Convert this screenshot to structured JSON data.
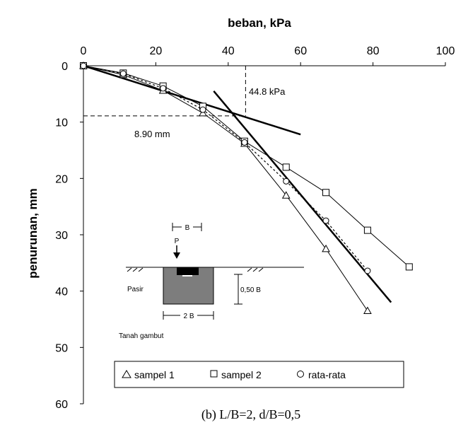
{
  "chart_data": {
    "type": "line",
    "xlabel": "beban, kPa",
    "ylabel": "penurunan, mm",
    "xlim": [
      0,
      100
    ],
    "ylim": [
      60,
      0
    ],
    "x_axis_position": "top",
    "y_inverted": true,
    "x_ticks": [
      "0",
      "20",
      "40",
      "60",
      "80",
      "100"
    ],
    "y_ticks": [
      "0",
      "10",
      "20",
      "30",
      "40",
      "50",
      "60"
    ],
    "grid": false,
    "legend_position": "bottom",
    "series": [
      {
        "name": "sampel 1",
        "marker": "triangle",
        "points": [
          [
            0,
            0
          ],
          [
            11,
            1.6
          ],
          [
            22,
            4.4
          ],
          [
            33,
            8.4
          ],
          [
            44.5,
            13.8
          ],
          [
            56,
            23
          ],
          [
            67,
            32.5
          ],
          [
            78.5,
            43.5
          ]
        ]
      },
      {
        "name": "sampel 2",
        "marker": "square",
        "points": [
          [
            0,
            0
          ],
          [
            11,
            1.3
          ],
          [
            22,
            3.6
          ],
          [
            33,
            7.2
          ],
          [
            44.5,
            13.4
          ],
          [
            56,
            18
          ],
          [
            67,
            22.5
          ],
          [
            78.5,
            29.2
          ],
          [
            90,
            35.7
          ]
        ]
      },
      {
        "name": "rata-rata",
        "marker": "circle",
        "points": [
          [
            0,
            0
          ],
          [
            11,
            1.4
          ],
          [
            22,
            4
          ],
          [
            33,
            7.8
          ],
          [
            44.5,
            13.6
          ],
          [
            56,
            20.5
          ],
          [
            67,
            27.5
          ],
          [
            78.5,
            36.4
          ]
        ]
      }
    ],
    "tangent_lines": [
      {
        "from": [
          0,
          0
        ],
        "to": [
          60,
          12.2
        ]
      },
      {
        "from": [
          36,
          4.5
        ],
        "to": [
          85,
          42
        ]
      }
    ],
    "reference_lines": {
      "x": 44.8,
      "y": 8.9
    },
    "annotations": {
      "load": "44.8 kPa",
      "settlement": "8.90 mm"
    },
    "caption": "(b) L/B=2, d/B=0,5",
    "inset": {
      "b_label": "B",
      "p_label": "P",
      "soil_top": "Pasir",
      "depth_label": "0,50 B",
      "width_label": "2 B",
      "soil_bottom": "Tanah gambut"
    }
  }
}
